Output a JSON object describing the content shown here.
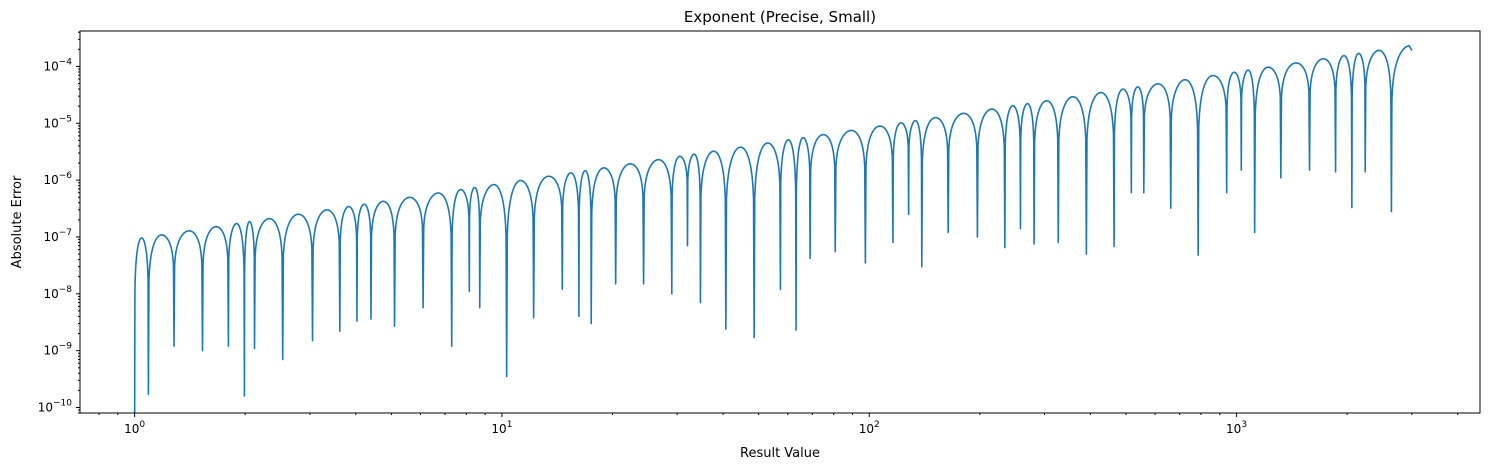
{
  "chart_data": {
    "type": "line",
    "title": "Exponent (Precise, Small)",
    "xlabel": "Result Value",
    "ylabel": "Absolute Error",
    "xscale": "log",
    "yscale": "log",
    "xlim": [
      0.71,
      4600
    ],
    "ylim": [
      8e-11,
      0.00042
    ],
    "xticks": [
      {
        "value": 1,
        "base": "10",
        "exp": "0"
      },
      {
        "value": 10,
        "base": "10",
        "exp": "1"
      },
      {
        "value": 100,
        "base": "10",
        "exp": "2"
      },
      {
        "value": 1000,
        "base": "10",
        "exp": "3"
      }
    ],
    "yticks": [
      {
        "value": 1e-10,
        "base": "10",
        "exp": "−10"
      },
      {
        "value": 1e-09,
        "base": "10",
        "exp": "−9"
      },
      {
        "value": 1e-08,
        "base": "10",
        "exp": "−8"
      },
      {
        "value": 1e-07,
        "base": "10",
        "exp": "−7"
      },
      {
        "value": 1e-06,
        "base": "10",
        "exp": "−6"
      },
      {
        "value": 1e-05,
        "base": "10",
        "exp": "−5"
      },
      {
        "value": 0.0001,
        "base": "10",
        "exp": "−4"
      }
    ],
    "grid": false,
    "series_color": "#1f77b4",
    "dips": [
      [
        1.0,
        5e-11
      ],
      [
        1.09,
        1.7e-10
      ],
      [
        1.28,
        1.2e-09
      ],
      [
        1.53,
        1e-09
      ],
      [
        1.8,
        1.2e-09
      ],
      [
        1.99,
        1.6e-10
      ],
      [
        2.12,
        1.1e-09
      ],
      [
        2.53,
        7e-10
      ],
      [
        3.05,
        1.5e-09
      ],
      [
        3.62,
        2.2e-09
      ],
      [
        4.03,
        3.3e-09
      ],
      [
        4.4,
        3.6e-09
      ],
      [
        5.1,
        2.7e-09
      ],
      [
        6.1,
        5.7e-09
      ],
      [
        7.3,
        1.2e-09
      ],
      [
        8.15,
        1.1e-08
      ],
      [
        8.7,
        5.7e-09
      ],
      [
        10.3,
        3.5e-10
      ],
      [
        12.2,
        3.8e-09
      ],
      [
        14.6,
        1.2e-08
      ],
      [
        16.2,
        4e-09
      ],
      [
        17.5,
        3e-09
      ],
      [
        20.4,
        1.5e-08
      ],
      [
        24.3,
        1.5e-08
      ],
      [
        29.0,
        1e-08
      ],
      [
        32.0,
        7e-08
      ],
      [
        34.7,
        7e-09
      ],
      [
        40.7,
        2.4e-09
      ],
      [
        48.6,
        1.7e-09
      ],
      [
        57.3,
        1.2e-08
      ],
      [
        63.2,
        2.3e-09
      ],
      [
        69.0,
        4.2e-08
      ],
      [
        80.8,
        5.5e-08
      ],
      [
        97.6,
        3.5e-08
      ],
      [
        116.0,
        8e-08
      ],
      [
        128.0,
        2.5e-07
      ],
      [
        139.0,
        3e-08
      ],
      [
        164.0,
        1.2e-07
      ],
      [
        197.0,
        1e-07
      ],
      [
        234.0,
        6.5e-08
      ],
      [
        258.0,
        1.4e-07
      ],
      [
        281.0,
        7.5e-08
      ],
      [
        327.0,
        8e-08
      ],
      [
        390.0,
        5e-08
      ],
      [
        464.0,
        6.8e-08
      ],
      [
        517.0,
        6e-07
      ],
      [
        559.0,
        6e-07
      ],
      [
        662.0,
        3.2e-07
      ],
      [
        786.0,
        4.8e-08
      ],
      [
        940.0,
        6e-07
      ],
      [
        1030.0,
        1.5e-06
      ],
      [
        1120.0,
        1.2e-07
      ],
      [
        1320.0,
        1.1e-06
      ],
      [
        1580.0,
        1.5e-06
      ],
      [
        1860.0,
        1.4e-06
      ],
      [
        2060.0,
        3.3e-07
      ],
      [
        2240.0,
        1.4e-06
      ],
      [
        2640.0,
        2.8e-07
      ]
    ],
    "x_end": 3000.0,
    "y_end": 0.00019,
    "envelope": {
      "amplitude": 9.2e-08,
      "power": 0.98,
      "x_peak_max": 2900.0,
      "y_peak_max": 0.00026
    }
  }
}
